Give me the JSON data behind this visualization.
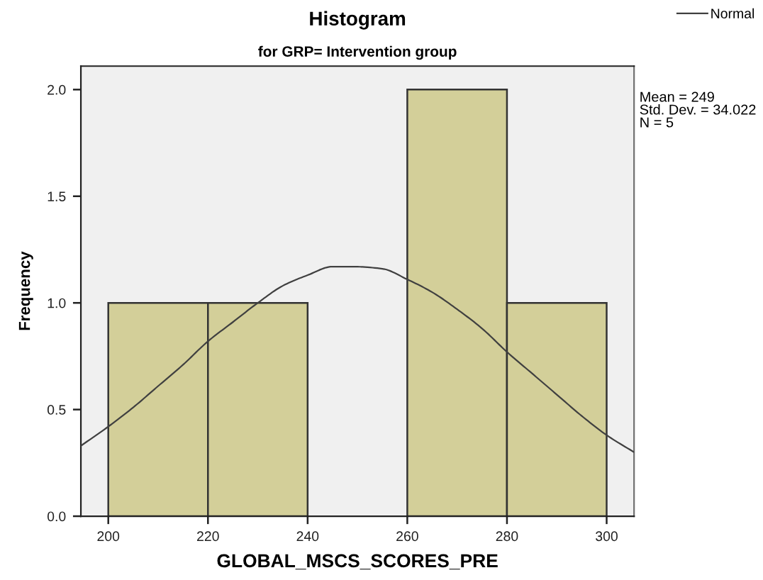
{
  "chart_data": {
    "type": "histogram",
    "title": "Histogram",
    "subtitle": "for GRP= Intervention group",
    "xlabel": "GLOBAL_MSCS_SCORES_PRE",
    "ylabel": "Frequency",
    "series": [
      {
        "color": "#d3cf99",
        "bins": [
          200,
          220,
          240,
          260,
          280,
          300
        ],
        "values": [
          1,
          1,
          0,
          2,
          1
        ]
      },
      {
        "type": "line",
        "name": "Normal",
        "color": "#404040",
        "x": [
          194.5,
          200,
          205,
          210,
          215,
          220,
          225,
          230,
          235,
          240,
          245,
          249,
          255,
          260,
          265,
          270,
          275,
          280,
          285,
          290,
          295,
          300,
          305.5
        ],
        "values": [
          0.33,
          0.42,
          0.51,
          0.61,
          0.71,
          0.82,
          0.91,
          1.0,
          1.08,
          1.13,
          1.17,
          1.17,
          1.16,
          1.11,
          1.05,
          0.97,
          0.88,
          0.77,
          0.67,
          0.57,
          0.47,
          0.38,
          0.3
        ]
      }
    ],
    "xlim": [
      194.5,
      305.5
    ],
    "ylim": [
      0,
      2.11
    ],
    "xticks": [
      200,
      220,
      240,
      260,
      280,
      300
    ],
    "yticks": [
      {
        "value": 0,
        "label": "0.0"
      },
      {
        "value": 0.5,
        "label": "0.5"
      },
      {
        "value": 1,
        "label": "1.0"
      },
      {
        "value": 1.5,
        "label": "1.5"
      },
      {
        "value": 2,
        "label": "2.0"
      }
    ],
    "annotations": [
      "Mean = 249",
      "Std. Dev. = 34.022",
      "N = 5"
    ],
    "legend": "top right",
    "grid": false,
    "marker": "none",
    "line_style": "solid"
  }
}
